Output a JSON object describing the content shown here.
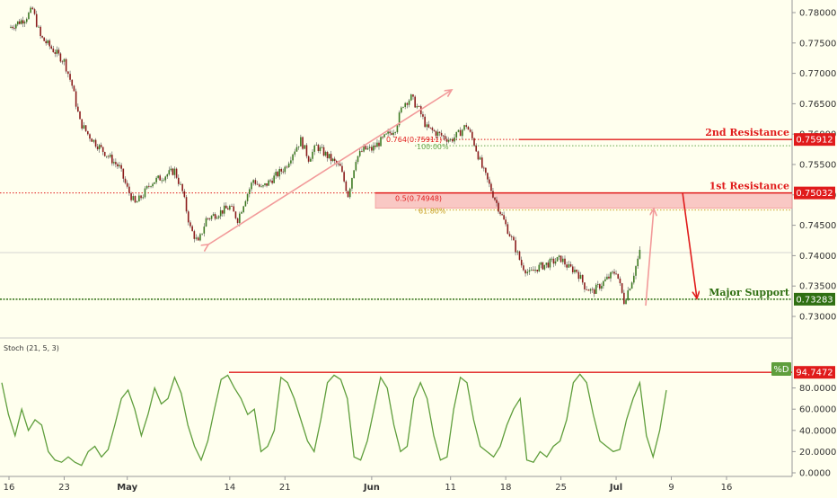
{
  "chart_data": [
    {
      "type": "candlestick",
      "price_axis": {
        "ticks": [
          "0.78000",
          "0.77500",
          "0.77000",
          "0.76500",
          "0.76000",
          "0.75500",
          "0.75000",
          "0.74500",
          "0.74000",
          "0.73500",
          "0.73000"
        ],
        "range": [
          0.7275,
          0.7825
        ]
      },
      "time_axis": {
        "ticks": [
          "16",
          "23",
          "May",
          "14",
          "21",
          "Jun",
          "11",
          "18",
          "25",
          "Jul",
          "9",
          "16"
        ]
      },
      "close_path": [
        [
          "Apr 16",
          0.7775
        ],
        [
          "Apr 18",
          0.779
        ],
        [
          "Apr 19",
          0.7805
        ],
        [
          "Apr 20",
          0.776
        ],
        [
          "Apr 23",
          0.772
        ],
        [
          "Apr 24",
          0.768
        ],
        [
          "Apr 25",
          0.762
        ],
        [
          "Apr 26",
          0.76
        ],
        [
          "Apr 27",
          0.7585
        ],
        [
          "Apr 30",
          0.7545
        ],
        [
          "May 1",
          0.751
        ],
        [
          "May 2",
          0.7485
        ],
        [
          "May 3",
          0.75
        ],
        [
          "May 4",
          0.752
        ],
        [
          "May 7",
          0.754
        ],
        [
          "May 8",
          0.7505
        ],
        [
          "May 9",
          0.7445
        ],
        [
          "May 10",
          0.742
        ],
        [
          "May 11",
          0.746
        ],
        [
          "May 14",
          0.748
        ],
        [
          "May 15",
          0.746
        ],
        [
          "May 16",
          0.7495
        ],
        [
          "May 17",
          0.7525
        ],
        [
          "May 18",
          0.751
        ],
        [
          "May 21",
          0.7545
        ],
        [
          "May 22",
          0.757
        ],
        [
          "May 23",
          0.759
        ],
        [
          "May 24",
          0.756
        ],
        [
          "May 25",
          0.758
        ],
        [
          "May 28",
          0.7545
        ],
        [
          "May 29",
          0.75
        ],
        [
          "May 30",
          0.756
        ],
        [
          "May 31",
          0.7575
        ],
        [
          "Jun 1",
          0.7575
        ],
        [
          "Jun 4",
          0.761
        ],
        [
          "Jun 5",
          0.765
        ],
        [
          "Jun 6",
          0.766
        ],
        [
          "Jun 7",
          0.764
        ],
        [
          "Jun 8",
          0.761
        ],
        [
          "Jun 11",
          0.759
        ],
        [
          "Jun 12",
          0.76
        ],
        [
          "Jun 13",
          0.7615
        ],
        [
          "Jun 14",
          0.7585
        ],
        [
          "Jun 15",
          0.7545
        ],
        [
          "Jun 18",
          0.745
        ],
        [
          "Jun 19",
          0.742
        ],
        [
          "Jun 20",
          0.7385
        ],
        [
          "Jun 21",
          0.737
        ],
        [
          "Jun 22",
          0.738
        ],
        [
          "Jun 25",
          0.7395
        ],
        [
          "Jun 26",
          0.738
        ],
        [
          "Jun 27",
          0.7375
        ],
        [
          "Jun 28",
          0.735
        ],
        [
          "Jun 29",
          0.734
        ],
        [
          "Jul 2",
          0.7375
        ],
        [
          "Jul 3",
          0.7325
        ],
        [
          "Jul 4",
          0.736
        ],
        [
          "Jul 5",
          0.7405
        ]
      ],
      "levels": [
        {
          "label": "2nd Resistance",
          "value": "0.75912",
          "color": "#e01b1b"
        },
        {
          "label": "1st Resistance",
          "value": "0.75032",
          "color": "#e01b1b"
        },
        {
          "label": "Major Support",
          "value": "0.73283",
          "color": "#2f6f12"
        }
      ],
      "fib_labels": [
        {
          "text": "0.764(0.75911)",
          "color": "#e01b1b"
        },
        {
          "text": "100.00%",
          "color": "#6aa84f"
        },
        {
          "text": "0.5(0.74948)",
          "color": "#e01b1b"
        },
        {
          "text": "61.80%",
          "color": "#c9a227"
        }
      ]
    },
    {
      "type": "line",
      "title": "Stoch (21, 5, 3)",
      "series": [
        {
          "name": "%D",
          "color": "#5f9e3c"
        }
      ],
      "y_ticks": [
        "80.0000",
        "60.0000",
        "40.0000",
        "20.0000",
        "0.0000"
      ],
      "ylim": [
        -2,
        100
      ],
      "level_value": "94.7472",
      "values": [
        85,
        55,
        35,
        60,
        40,
        50,
        45,
        20,
        12,
        10,
        15,
        10,
        7,
        20,
        25,
        15,
        22,
        45,
        70,
        78,
        60,
        35,
        55,
        80,
        65,
        70,
        90,
        75,
        45,
        25,
        12,
        30,
        60,
        88,
        92,
        80,
        70,
        55,
        60,
        20,
        25,
        40,
        90,
        85,
        70,
        50,
        30,
        20,
        50,
        85,
        92,
        88,
        70,
        15,
        12,
        30,
        60,
        90,
        80,
        45,
        20,
        25,
        70,
        85,
        70,
        35,
        12,
        15,
        60,
        90,
        85,
        50,
        25,
        20,
        15,
        25,
        45,
        60,
        70,
        12,
        10,
        20,
        15,
        25,
        30,
        50,
        85,
        93,
        85,
        55,
        30,
        25,
        20,
        22,
        50,
        70,
        85,
        35,
        15,
        40,
        78
      ]
    }
  ]
}
